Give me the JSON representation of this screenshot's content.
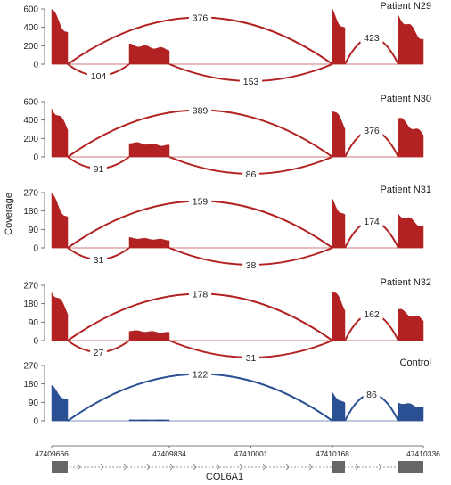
{
  "chart_data": [
    {
      "type": "area",
      "title": "Patient N29",
      "ylabel": "Coverage",
      "ylim": [
        0,
        600
      ],
      "yticks": [
        0,
        200,
        400,
        600
      ],
      "color": "#b22222",
      "exons": [
        {
          "from": 47409666,
          "to": 47409672,
          "peak": 580,
          "tail": 330
        },
        {
          "from": 47409802,
          "to": 47409834,
          "peak": 210,
          "tail": 160
        },
        {
          "from": 47410168,
          "to": 47410172,
          "peak": 570,
          "tail": 370
        },
        {
          "from": 47410300,
          "to": 47410336,
          "peak": 520,
          "tail": 270
        }
      ],
      "junctions": [
        {
          "from": 47409672,
          "to": 47410168,
          "reads": 376,
          "side": "above"
        },
        {
          "from": 47409672,
          "to": 47409802,
          "reads": 104,
          "side": "below"
        },
        {
          "from": 47409834,
          "to": 47410168,
          "reads": 153,
          "side": "below"
        },
        {
          "from": 47410172,
          "to": 47410300,
          "reads": 423,
          "side": "above"
        }
      ]
    },
    {
      "type": "area",
      "title": "Patient N30",
      "ylabel": "Coverage",
      "ylim": [
        0,
        600
      ],
      "yticks": [
        0,
        200,
        400,
        600
      ],
      "color": "#b22222",
      "exons": [
        {
          "from": 47409666,
          "to": 47409672,
          "peak": 540,
          "tail": 310
        },
        {
          "from": 47409802,
          "to": 47409834,
          "peak": 155,
          "tail": 120
        },
        {
          "from": 47410168,
          "to": 47410172,
          "peak": 520,
          "tail": 330
        },
        {
          "from": 47410300,
          "to": 47410336,
          "peak": 420,
          "tail": 240
        }
      ],
      "junctions": [
        {
          "from": 47409672,
          "to": 47410168,
          "reads": 389,
          "side": "above"
        },
        {
          "from": 47409672,
          "to": 47409802,
          "reads": 91,
          "side": "below"
        },
        {
          "from": 47409834,
          "to": 47410168,
          "reads": 86,
          "side": "below"
        },
        {
          "from": 47410172,
          "to": 47410300,
          "reads": 376,
          "side": "above"
        }
      ]
    },
    {
      "type": "area",
      "title": "Patient N31",
      "ylabel": "Coverage",
      "ylim": [
        0,
        270
      ],
      "yticks": [
        0,
        90,
        180,
        270
      ],
      "color": "#b22222",
      "exons": [
        {
          "from": 47409666,
          "to": 47409672,
          "peak": 255,
          "tail": 140
        },
        {
          "from": 47409802,
          "to": 47409834,
          "peak": 48,
          "tail": 38
        },
        {
          "from": 47410168,
          "to": 47410172,
          "peak": 230,
          "tail": 150
        },
        {
          "from": 47410300,
          "to": 47410336,
          "peak": 165,
          "tail": 105
        }
      ],
      "junctions": [
        {
          "from": 47409672,
          "to": 47410168,
          "reads": 159,
          "side": "above"
        },
        {
          "from": 47409672,
          "to": 47409802,
          "reads": 31,
          "side": "below"
        },
        {
          "from": 47409834,
          "to": 47410168,
          "reads": 38,
          "side": "below"
        },
        {
          "from": 47410172,
          "to": 47410300,
          "reads": 174,
          "side": "above"
        }
      ]
    },
    {
      "type": "area",
      "title": "Patient N32",
      "ylabel": "Coverage",
      "ylim": [
        0,
        270
      ],
      "yticks": [
        0,
        90,
        180,
        270
      ],
      "color": "#b22222",
      "exons": [
        {
          "from": 47409666,
          "to": 47409672,
          "peak": 245,
          "tail": 140
        },
        {
          "from": 47409802,
          "to": 47409834,
          "peak": 48,
          "tail": 38
        },
        {
          "from": 47410168,
          "to": 47410172,
          "peak": 245,
          "tail": 160
        },
        {
          "from": 47410300,
          "to": 47410336,
          "peak": 150,
          "tail": 100
        }
      ],
      "junctions": [
        {
          "from": 47409672,
          "to": 47410168,
          "reads": 178,
          "side": "above"
        },
        {
          "from": 47409672,
          "to": 47409802,
          "reads": 27,
          "side": "below"
        },
        {
          "from": 47409834,
          "to": 47410168,
          "reads": 31,
          "side": "below"
        },
        {
          "from": 47410172,
          "to": 47410300,
          "reads": 162,
          "side": "above"
        }
      ]
    },
    {
      "type": "area",
      "title": "Control",
      "ylabel": "Coverage",
      "ylim": [
        0,
        270
      ],
      "yticks": [
        0,
        90,
        180,
        270
      ],
      "color": "#2b4f93",
      "exons": [
        {
          "from": 47409666,
          "to": 47409672,
          "peak": 165,
          "tail": 95
        },
        {
          "from": 47409802,
          "to": 47409834,
          "peak": 5,
          "tail": 5
        },
        {
          "from": 47410168,
          "to": 47410172,
          "peak": 135,
          "tail": 80
        },
        {
          "from": 47410300,
          "to": 47410336,
          "peak": 90,
          "tail": 65
        }
      ],
      "junctions": [
        {
          "from": 47409672,
          "to": 47410168,
          "reads": 122,
          "side": "above"
        },
        {
          "from": 47410172,
          "to": 47410300,
          "reads": 86,
          "side": "above"
        }
      ]
    }
  ],
  "x_axis": {
    "ticks": [
      {
        "value": 47409666,
        "label": "47409666"
      },
      {
        "value": 47409834,
        "label": "47409834"
      },
      {
        "value": 47410001,
        "label": "47410001"
      },
      {
        "value": 47410168,
        "label": "47410168"
      },
      {
        "value": 47410336,
        "label": "47410336"
      }
    ]
  },
  "gene": {
    "name": "COL6A1",
    "exons": [
      {
        "from": 47409666,
        "to": 47409672
      },
      {
        "from": 47410168,
        "to": 47410172
      },
      {
        "from": 47410300,
        "to": 47410336
      }
    ]
  }
}
